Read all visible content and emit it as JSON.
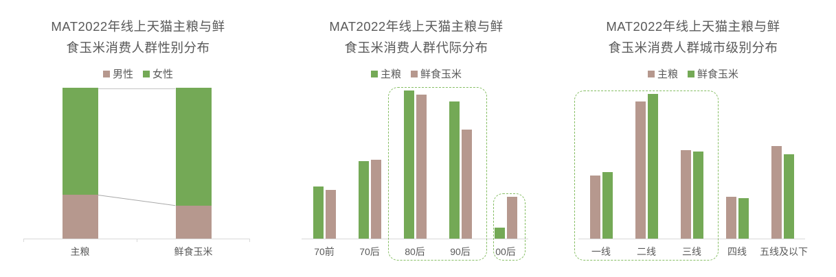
{
  "page": {
    "background": "#ffffff"
  },
  "colors": {
    "green": "#74a956",
    "brown": "#b6988e",
    "title_text": "#595959",
    "label_text": "#595959",
    "axis_line": "#d9d9d9",
    "connector_top_line": "#c4c4c4",
    "connector_line": "#a8a8a8",
    "highlight_border": "#84bd61"
  },
  "chart_data": [
    {
      "id": "gender-distribution",
      "type": "bar",
      "subtype": "stacked-bar-100",
      "title_line1": "MAT2022年线上天猫主粮与鲜",
      "title_line2": "食玉米消费人群性别分布",
      "title": "MAT2022年线上天猫主粮与鲜食玉米消费人群性别分布",
      "legend": [
        {
          "label": "男性",
          "color_key": "brown"
        },
        {
          "label": "女性",
          "color_key": "green"
        }
      ],
      "legend_position": "top-center",
      "categories": [
        "主粮",
        "鲜食玉米"
      ],
      "series": [
        {
          "name": "男性",
          "color_key": "brown",
          "values_pct": [
            29,
            22
          ]
        },
        {
          "name": "女性",
          "color_key": "green",
          "values_pct": [
            71,
            78
          ]
        }
      ],
      "units": "percent of consumers (100% stacked, no numeric axis shown)",
      "ylim": [
        0,
        100
      ],
      "grid": false,
      "connectors": true,
      "axis_mid_ticks": true
    },
    {
      "id": "generation-distribution",
      "type": "bar",
      "subtype": "grouped-bar",
      "title_line1": "MAT2022年线上天猫主粮与鲜",
      "title_line2": "食玉米消费人群代际分布",
      "title": "MAT2022年线上天猫主粮与鲜食玉米消费人群代际分布",
      "legend": [
        {
          "label": "主粮",
          "color_key": "green"
        },
        {
          "label": "鲜食玉米",
          "color_key": "brown"
        }
      ],
      "legend_position": "top-center",
      "categories": [
        "70前",
        "70后",
        "80后",
        "90后",
        "00后"
      ],
      "series": [
        {
          "name": "主粮",
          "color_key": "green",
          "height_pct": [
            34.5,
            51.4,
            98.2,
            90.9,
            7.3
          ]
        },
        {
          "name": "鲜食玉米",
          "color_key": "brown",
          "height_pct": [
            32.3,
            52.3,
            95.5,
            72.3,
            27.7
          ]
        }
      ],
      "units": "relative bar height, % of plot height (chart shows no numeric axis)",
      "grid": false,
      "highlights": [
        {
          "from": 2,
          "to": 3,
          "inset_left": -6,
          "inset_right": -6,
          "pad_top": 6
        },
        {
          "from": 4,
          "to": 4,
          "inset_left": 15,
          "inset_right": 4,
          "pad_top": 6
        }
      ]
    },
    {
      "id": "city-tier-distribution",
      "type": "bar",
      "subtype": "grouped-bar",
      "title_line1": "MAT2022年线上天猫主粮与鲜",
      "title_line2": "食玉米消费人群城市级别分布",
      "title": "MAT2022年线上天猫主粮与鲜食玉米消费人群城市级别分布",
      "legend": [
        {
          "label": "主粮",
          "color_key": "brown"
        },
        {
          "label": "鲜食玉米",
          "color_key": "green"
        }
      ],
      "legend_position": "top-center",
      "categories": [
        "一线",
        "二线",
        "三线",
        "四线",
        "五线及以下"
      ],
      "series": [
        {
          "name": "主粮",
          "color_key": "brown",
          "height_pct": [
            41.8,
            90.9,
            58.6,
            27.7,
            61.4
          ]
        },
        {
          "name": "鲜食玉米",
          "color_key": "green",
          "height_pct": [
            44.1,
            95.9,
            57.7,
            26.8,
            55.9
          ]
        }
      ],
      "units": "relative bar height, % of plot height (chart shows no numeric axis)",
      "grid": false,
      "highlights": [
        {
          "from": 0,
          "to": 2,
          "inset_left": -6,
          "inset_right": -6,
          "pad_top": 6
        }
      ]
    }
  ]
}
